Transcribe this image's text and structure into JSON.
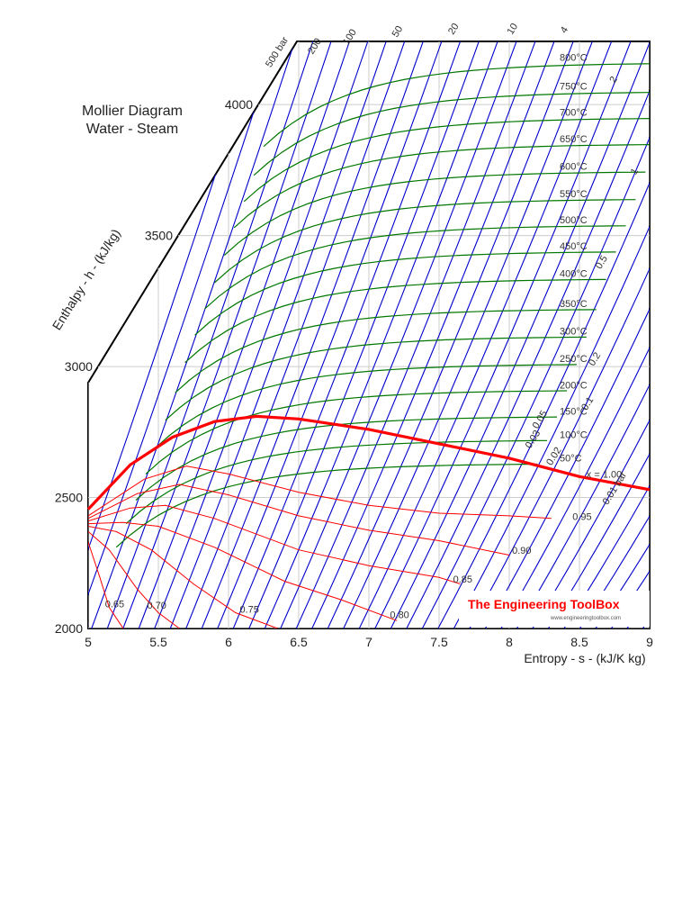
{
  "chart_data": {
    "type": "line",
    "title": "Mollier Diagram",
    "subtitle": "Water - Steam",
    "xlabel": "Entropy - s - (kJ/K kg)",
    "ylabel": "Enthalpy - h - (kJ/kg)",
    "xlim": [
      5,
      9
    ],
    "ylim": [
      2000,
      4200
    ],
    "xticks": [
      "5",
      "5.5",
      "6",
      "6.5",
      "7",
      "7.5",
      "8",
      "8.5",
      "9"
    ],
    "yticks": [
      "2000",
      "2500",
      "3000",
      "3500",
      "4000"
    ],
    "grid": true,
    "saturation_line": {
      "label": "x = 1.00",
      "color": "#ff0000",
      "points": [
        [
          5.0,
          2455
        ],
        [
          5.3,
          2625
        ],
        [
          5.6,
          2730
        ],
        [
          5.9,
          2790
        ],
        [
          6.2,
          2810
        ],
        [
          6.5,
          2800
        ],
        [
          7.0,
          2760
        ],
        [
          7.5,
          2705
        ],
        [
          8.0,
          2650
        ],
        [
          8.5,
          2580
        ],
        [
          9.0,
          2530
        ]
      ]
    },
    "quality_lines": {
      "color": "#ff0000",
      "series": [
        {
          "name": "0.95",
          "label_at": [
            8.45,
            2415
          ],
          "points": [
            [
              5.0,
              2430
            ],
            [
              5.4,
              2570
            ],
            [
              5.7,
              2620
            ],
            [
              6.0,
              2590
            ],
            [
              6.5,
              2520
            ],
            [
              7.0,
              2470
            ],
            [
              7.5,
              2440
            ],
            [
              8.0,
              2430
            ],
            [
              8.3,
              2420
            ]
          ]
        },
        {
          "name": "0.90",
          "label_at": [
            8.02,
            2285
          ],
          "points": [
            [
              5.0,
              2420
            ],
            [
              5.35,
              2515
            ],
            [
              5.65,
              2550
            ],
            [
              6.0,
              2510
            ],
            [
              6.5,
              2430
            ],
            [
              7.0,
              2375
            ],
            [
              7.5,
              2335
            ],
            [
              8.0,
              2280
            ]
          ]
        },
        {
          "name": "0.85",
          "label_at": [
            7.6,
            2175
          ],
          "points": [
            [
              5.0,
              2410
            ],
            [
              5.3,
              2460
            ],
            [
              5.55,
              2470
            ],
            [
              5.9,
              2420
            ],
            [
              6.5,
              2300
            ],
            [
              7.0,
              2240
            ],
            [
              7.5,
              2195
            ],
            [
              7.65,
              2170
            ]
          ]
        },
        {
          "name": "0.80",
          "label_at": [
            7.15,
            2040
          ],
          "points": [
            [
              5.0,
              2400
            ],
            [
              5.25,
              2405
            ],
            [
              5.5,
              2390
            ],
            [
              5.9,
              2310
            ],
            [
              6.4,
              2180
            ],
            [
              6.8,
              2110
            ],
            [
              7.2,
              2030
            ]
          ]
        },
        {
          "name": "0.75",
          "label_at": [
            6.08,
            2060
          ],
          "points": [
            [
              5.0,
              2390
            ],
            [
              5.2,
              2370
            ],
            [
              5.45,
              2300
            ],
            [
              5.75,
              2170
            ],
            [
              6.05,
              2060
            ],
            [
              6.35,
              2000
            ]
          ]
        },
        {
          "name": "0.70",
          "label_at": [
            5.42,
            2075
          ],
          "points": [
            [
              5.0,
              2370
            ],
            [
              5.15,
              2300
            ],
            [
              5.35,
              2150
            ],
            [
              5.5,
              2060
            ],
            [
              5.65,
              2000
            ]
          ]
        },
        {
          "name": "0.65",
          "label_at": [
            5.12,
            2080
          ],
          "points": [
            [
              5.0,
              2330
            ],
            [
              5.08,
              2200
            ],
            [
              5.15,
              2080
            ],
            [
              5.25,
              2000
            ]
          ]
        }
      ]
    },
    "isobars": {
      "color": "#0000cc",
      "labels": [
        "500 bar",
        "200",
        "100",
        "50",
        "20",
        "10",
        "4",
        "2",
        "1",
        "0.5",
        "0.2",
        "0.1",
        "0.05",
        "0.03",
        "0.02",
        "0.01 bar"
      ],
      "label_positions": [
        [
          6.3,
          4140
        ],
        [
          6.6,
          4190
        ],
        [
          6.85,
          4225
        ],
        [
          7.2,
          4255
        ],
        [
          7.6,
          4265
        ],
        [
          8.02,
          4265
        ],
        [
          8.4,
          4270
        ],
        [
          8.75,
          4080
        ],
        [
          8.9,
          3730
        ],
        [
          8.65,
          3370
        ],
        [
          8.6,
          3000
        ],
        [
          8.55,
          2830
        ],
        [
          8.2,
          2760
        ],
        [
          8.15,
          2685
        ],
        [
          8.3,
          2620
        ],
        [
          8.7,
          2470
        ]
      ],
      "count": 42
    },
    "isotherms": {
      "color": "#007700",
      "series": [
        {
          "name": "800°C",
          "h": 4160
        },
        {
          "name": "750°C",
          "h": 4050
        },
        {
          "name": "700°C",
          "h": 3950
        },
        {
          "name": "650°C",
          "h": 3850
        },
        {
          "name": "600°C",
          "h": 3745
        },
        {
          "name": "550°C",
          "h": 3640
        },
        {
          "name": "500°C",
          "h": 3540
        },
        {
          "name": "450°C",
          "h": 3440
        },
        {
          "name": "400°C",
          "h": 3335
        },
        {
          "name": "350°C",
          "h": 3220
        },
        {
          "name": "300°C",
          "h": 3115
        },
        {
          "name": "250°C",
          "h": 3010
        },
        {
          "name": "200°C",
          "h": 2910
        },
        {
          "name": "150°C",
          "h": 2810
        },
        {
          "name": "100°C",
          "h": 2720
        },
        {
          "name": "50°C",
          "h": 2630
        }
      ]
    },
    "quality_prefix": "x"
  },
  "branding": {
    "name": "The Engineering ToolBox",
    "url": "www.engineeringtoolbox.com",
    "color": "#ff0000"
  }
}
